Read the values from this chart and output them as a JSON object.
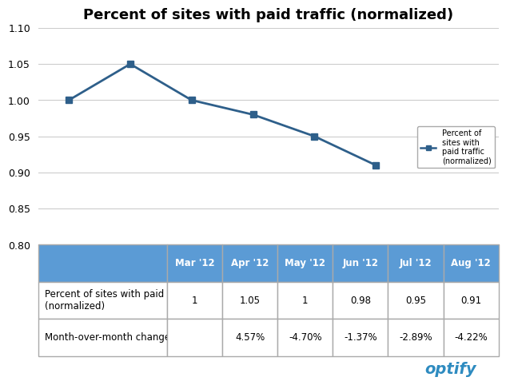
{
  "title": "Percent of sites with paid traffic (normalized)",
  "months": [
    "Mar '12",
    "Apr '12",
    "May '12",
    "Jun '12",
    "Jul '12",
    "Aug '12"
  ],
  "values": [
    1.0,
    1.05,
    1.0,
    0.98,
    0.95,
    0.91
  ],
  "ylim": [
    0.8,
    1.1
  ],
  "yticks": [
    0.8,
    0.85,
    0.9,
    0.95,
    1.0,
    1.05,
    1.1
  ],
  "line_color": "#2e5f8a",
  "marker": "s",
  "marker_size": 6,
  "legend_label": "Percent of\nsites with\npaid traffic\n(normalized)",
  "table_header_color": "#5b9bd5",
  "table_row1_label": "Percent of sites with paid traffic\n(normalized)",
  "table_row2_label": "Month-over-month change",
  "table_values_row1": [
    "1",
    "1.05",
    "1",
    "0.98",
    "0.95",
    "0.91"
  ],
  "table_values_row2": [
    "",
    "4.57%",
    "-4.70%",
    "-1.37%",
    "-2.89%",
    "-4.22%"
  ],
  "bg_color": "#ffffff",
  "chart_bg": "#ffffff",
  "grid_color": "#cccccc",
  "optify_color": "#2e8bc0",
  "title_fontsize": 13,
  "tick_fontsize": 9,
  "table_fontsize": 8.5
}
